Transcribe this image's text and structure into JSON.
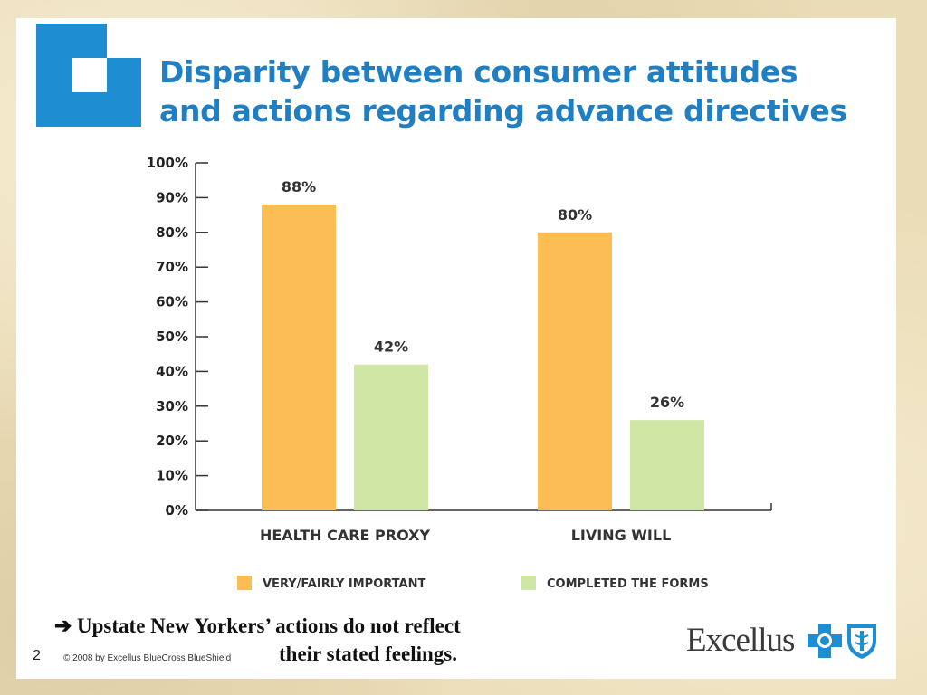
{
  "slide": {
    "title_line1": "Disparity between consumer attitudes",
    "title_line2": "and actions regarding advance directives",
    "takeaway_arrow": "➔",
    "takeaway_line1": "Upstate New Yorkers’ actions do not reflect",
    "takeaway_line2": "their stated feelings.",
    "page_number": "2",
    "copyright": "© 2008 by Excellus BlueCross BlueShield",
    "brand": "Excellus"
  },
  "colors": {
    "title": "#1f7fc2",
    "logo_blue": "#1e8ed1",
    "series_important": "#fbbd54",
    "series_completed": "#cfe6a5"
  },
  "chart_data": {
    "type": "bar",
    "categories": [
      "HEALTH CARE PROXY",
      "LIVING WILL"
    ],
    "series": [
      {
        "name": "VERY/FAIRLY IMPORTANT",
        "values": [
          88,
          80
        ],
        "color": "#fbbd54"
      },
      {
        "name": "COMPLETED THE FORMS",
        "values": [
          42,
          26
        ],
        "color": "#cfe6a5"
      }
    ],
    "data_labels": [
      [
        "88%",
        "80%"
      ],
      [
        "42%",
        "26%"
      ]
    ],
    "yticks": [
      "0%",
      "10%",
      "20%",
      "30%",
      "40%",
      "50%",
      "60%",
      "70%",
      "80%",
      "90%",
      "100%"
    ],
    "ylim": [
      0,
      100
    ],
    "legend_position": "bottom",
    "grid": false
  }
}
